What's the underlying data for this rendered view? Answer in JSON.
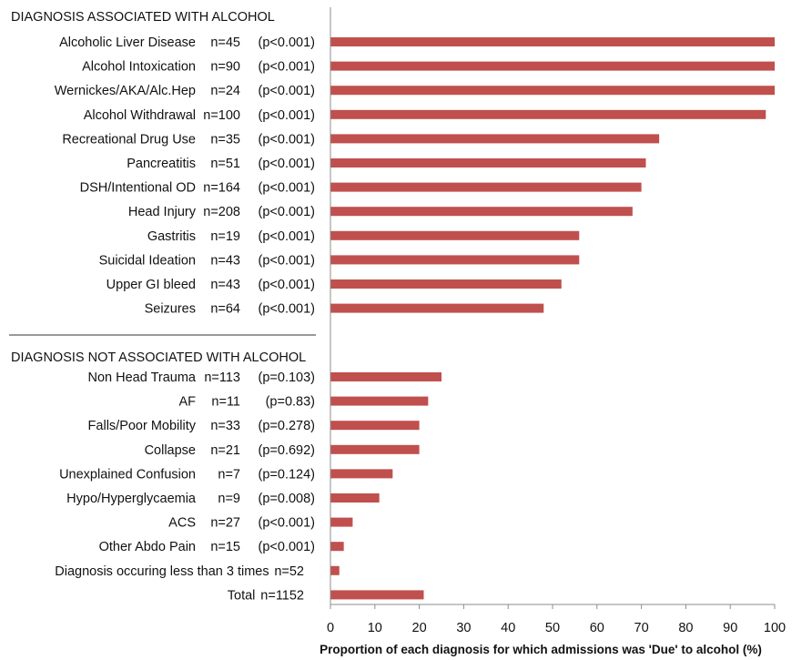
{
  "chart_data": {
    "type": "bar",
    "orientation": "horizontal",
    "xlabel": "Proportion of each diagnosis for which admissions was 'Due' to alcohol (%)",
    "xlim": [
      0,
      100
    ],
    "xticks": [
      "0",
      "10",
      "20",
      "30",
      "40",
      "50",
      "60",
      "70",
      "80",
      "90",
      "100"
    ],
    "grid": false,
    "bar_color": "#c0504d",
    "groups": [
      {
        "title": "DIAGNOSIS ASSOCIATED WITH ALCOHOL",
        "items": [
          {
            "name": "Alcoholic Liver Disease",
            "n": "n=45",
            "p": "(p<0.001)",
            "value": 100
          },
          {
            "name": "Alcohol Intoxication",
            "n": "n=90",
            "p": "(p<0.001)",
            "value": 100
          },
          {
            "name": "Wernickes/AKA/Alc.Hep",
            "n": "n=24",
            "p": "(p<0.001)",
            "value": 100
          },
          {
            "name": "Alcohol Withdrawal",
            "n": "n=100",
            "p": "(p<0.001)",
            "value": 98
          },
          {
            "name": "Recreational Drug Use",
            "n": "n=35",
            "p": "(p<0.001)",
            "value": 74
          },
          {
            "name": "Pancreatitis",
            "n": "n=51",
            "p": "(p<0.001)",
            "value": 71
          },
          {
            "name": "DSH/Intentional OD",
            "n": "n=164",
            "p": "(p<0.001)",
            "value": 70
          },
          {
            "name": "Head Injury",
            "n": "n=208",
            "p": "(p<0.001)",
            "value": 68
          },
          {
            "name": "Gastritis",
            "n": "n=19",
            "p": "(p<0.001)",
            "value": 56
          },
          {
            "name": "Suicidal Ideation",
            "n": "n=43",
            "p": "(p<0.001)",
            "value": 56
          },
          {
            "name": "Upper GI bleed",
            "n": "n=43",
            "p": "(p<0.001)",
            "value": 52
          },
          {
            "name": "Seizures",
            "n": "n=64",
            "p": "(p<0.001)",
            "value": 48
          }
        ]
      },
      {
        "title": "DIAGNOSIS NOT ASSOCIATED WITH ALCOHOL",
        "items": [
          {
            "name": "Non Head Trauma",
            "n": "n=113",
            "p": "(p=0.103)",
            "value": 25
          },
          {
            "name": "AF",
            "n": "n=11",
            "p": "(p=0.83)",
            "value": 22
          },
          {
            "name": "Falls/Poor Mobility",
            "n": "n=33",
            "p": "(p=0.278)",
            "value": 20
          },
          {
            "name": "Collapse",
            "n": "n=21",
            "p": "(p=0.692)",
            "value": 20
          },
          {
            "name": "Unexplained Confusion",
            "n": "n=7",
            "p": "(p=0.124)",
            "value": 14
          },
          {
            "name": "Hypo/Hyperglycaemia",
            "n": "n=9",
            "p": "(p=0.008)",
            "value": 11
          },
          {
            "name": "ACS",
            "n": "n=27",
            "p": "(p<0.001)",
            "value": 5
          },
          {
            "name": "Other Abdo Pain",
            "n": "n=15",
            "p": "(p<0.001)",
            "value": 3
          },
          {
            "name": "Diagnosis occuring less than 3 times",
            "n": "n=52",
            "p": "",
            "value": 2
          },
          {
            "name": "Total",
            "n": "n=1152",
            "p": "",
            "value": 21
          }
        ]
      }
    ]
  }
}
